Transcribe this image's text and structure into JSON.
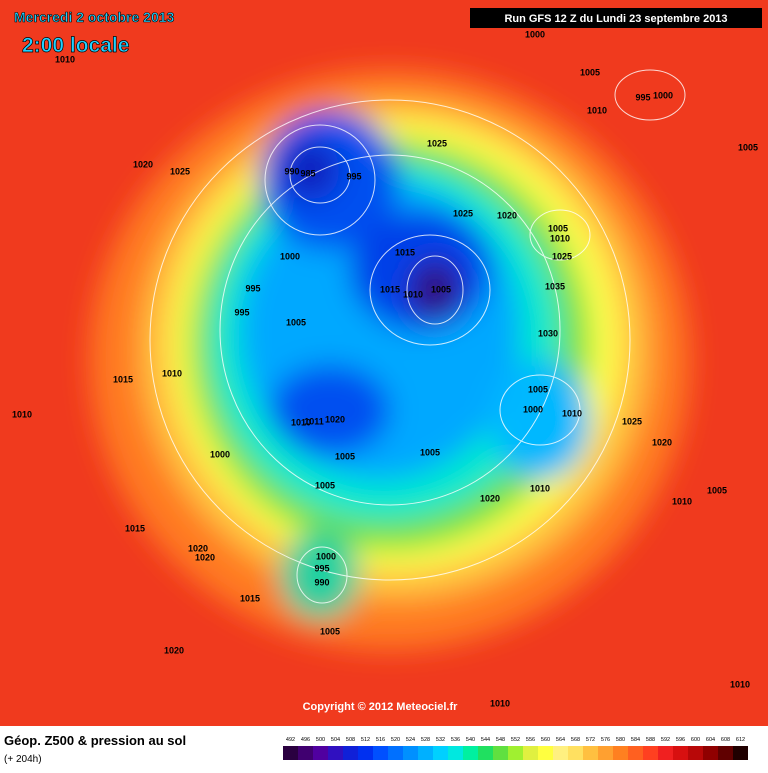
{
  "header": {
    "date": "Mercredi 2 octobre 2013",
    "time": "2:00 locale",
    "run": "Run GFS 12 Z du Lundi 23 septembre 2013"
  },
  "copyright": "Copyright © 2012 Meteociel.fr",
  "legend": {
    "title": "Géop. Z500 & pression au sol",
    "lead": "(+ 204h)",
    "scale": [
      492,
      496,
      500,
      504,
      508,
      512,
      516,
      520,
      524,
      528,
      532,
      536,
      540,
      544,
      548,
      552,
      556,
      560,
      564,
      568,
      572,
      576,
      580,
      584,
      588,
      592,
      596,
      600,
      604,
      608,
      612
    ],
    "colors": [
      "#2a0040",
      "#400070",
      "#5000a0",
      "#3010c0",
      "#1020d8",
      "#0030f0",
      "#0050ff",
      "#0070ff",
      "#0090ff",
      "#00b0ff",
      "#00d0ff",
      "#00e8e0",
      "#00f0a0",
      "#20e060",
      "#60e040",
      "#a0f030",
      "#e0f040",
      "#ffff40",
      "#fff080",
      "#ffe060",
      "#ffc040",
      "#ffa030",
      "#ff8020",
      "#ff6020",
      "#ff4020",
      "#f02020",
      "#d81010",
      "#b80808",
      "#900000",
      "#600000",
      "#200000"
    ]
  },
  "isobar_labels": [
    "1010",
    "1000",
    "1005",
    "995",
    "1000",
    "1010",
    "1005",
    "1020",
    "1025",
    "990",
    "985",
    "995",
    "1025",
    "1025",
    "1020",
    "1005",
    "1010",
    "1025",
    "1000",
    "1015",
    "995",
    "1015",
    "1010",
    "1005",
    "1035",
    "995",
    "1005",
    "1030",
    "1015",
    "1010",
    "1005",
    "1000",
    "1010",
    "1010",
    "1010",
    "1011",
    "1020",
    "1025",
    "1020",
    "1000",
    "1005",
    "1005",
    "1005",
    "1010",
    "1020",
    "1010",
    "1005",
    "1015",
    "1020",
    "1020",
    "1000",
    "995",
    "990",
    "1015",
    "1005",
    "1020",
    "1010",
    "1010"
  ]
}
